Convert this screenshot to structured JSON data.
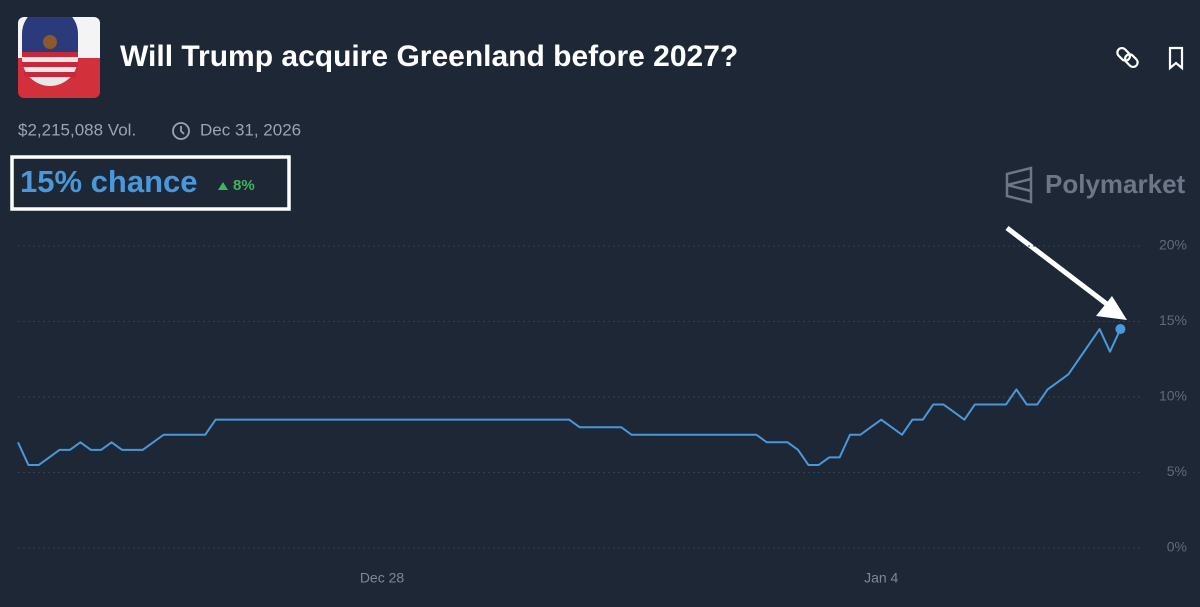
{
  "header": {
    "title": "Will Trump acquire Greenland before 2027?",
    "volume": "$2,215,088 Vol.",
    "end_date": "Dec 31, 2026",
    "chance": "15% chance",
    "change": "8%",
    "brand": "Polymarket"
  },
  "chart_data": {
    "type": "line",
    "categories": [
      null,
      null,
      null,
      null,
      null,
      null,
      null,
      null,
      null,
      null,
      null,
      null,
      null,
      null,
      null,
      null,
      null,
      null,
      null,
      null,
      null,
      null,
      null,
      null,
      null,
      null,
      null,
      null,
      null,
      null,
      null,
      null,
      null,
      null,
      null,
      "Dec 28",
      null,
      null,
      null,
      null,
      null,
      null,
      null,
      null,
      null,
      null,
      null,
      null,
      null,
      null,
      null,
      null,
      null,
      null,
      null,
      null,
      null,
      null,
      null,
      null,
      null,
      null,
      null,
      null,
      null,
      null,
      null,
      null,
      null,
      null,
      null,
      null,
      null,
      null,
      null,
      null,
      null,
      null,
      null,
      null,
      null,
      null,
      null,
      "Jan 4",
      null,
      null,
      null,
      null,
      null,
      null,
      null,
      null,
      null,
      null,
      null,
      null,
      null,
      null,
      null,
      null,
      null,
      null,
      null,
      null,
      null,
      null,
      null
    ],
    "series": [
      {
        "color": "#4a98d9",
        "values": [
          7,
          5.5,
          5.5,
          6,
          6.5,
          6.5,
          7,
          6.5,
          6.5,
          7,
          6.5,
          6.5,
          6.5,
          7,
          7.5,
          7.5,
          7.5,
          7.5,
          7.5,
          8.5,
          8.5,
          8.5,
          8.5,
          8.5,
          8.5,
          8.5,
          8.5,
          8.5,
          8.5,
          8.5,
          8.5,
          8.5,
          8.5,
          8.5,
          8.5,
          8.5,
          8.5,
          8.5,
          8.5,
          8.5,
          8.5,
          8.5,
          8.5,
          8.5,
          8.5,
          8.5,
          8.5,
          8.5,
          8.5,
          8.5,
          8.5,
          8.5,
          8.5,
          8.5,
          8,
          8,
          8,
          8,
          8,
          7.5,
          7.5,
          7.5,
          7.5,
          7.5,
          7.5,
          7.5,
          7.5,
          7.5,
          7.5,
          7.5,
          7.5,
          7.5,
          7,
          7,
          7,
          6.5,
          5.5,
          5.5,
          6,
          6,
          7.5,
          7.5,
          8,
          8.5,
          8,
          7.5,
          8.5,
          8.5,
          9.5,
          9.5,
          9,
          8.5,
          9.5,
          9.5,
          9.5,
          9.5,
          10.5,
          9.5,
          9.5,
          10.5,
          11,
          11.5,
          12.5,
          13.5,
          14.5,
          13,
          14.5
        ]
      }
    ],
    "ylim": [
      0,
      20
    ],
    "yticks": [
      {
        "value": 0,
        "label": "0%"
      },
      {
        "value": 5,
        "label": "5%"
      },
      {
        "value": 10,
        "label": "10%"
      },
      {
        "value": 15,
        "label": "15%"
      },
      {
        "value": 20,
        "label": "20%"
      }
    ],
    "grid": true
  }
}
